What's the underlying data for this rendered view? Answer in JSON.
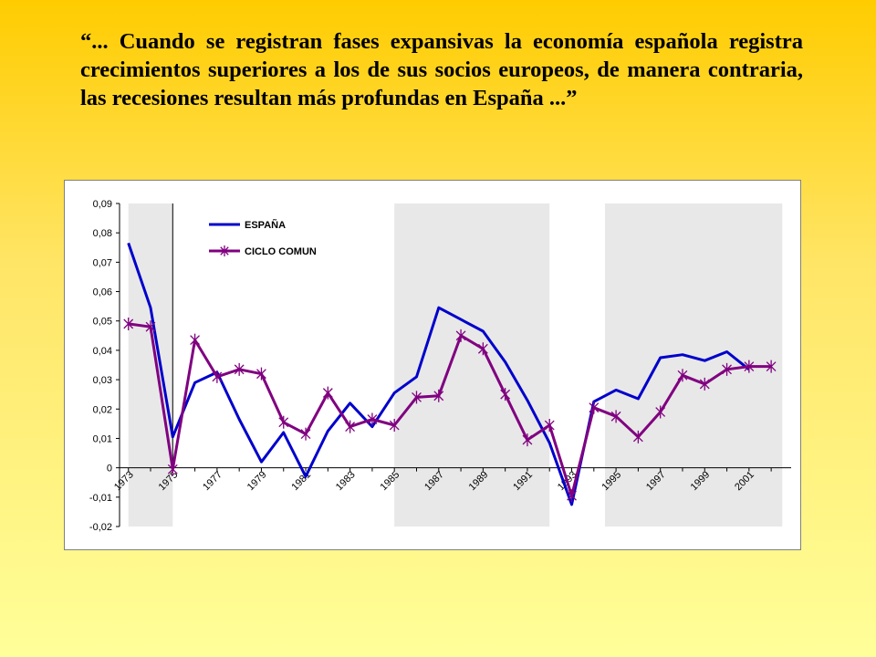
{
  "quote": {
    "text": "“... Cuando se registran fases expansivas la economía española registra crecimientos superiores a los de sus socios europeos, de manera contraria, las recesiones resultan más profundas en España ...”"
  },
  "colors": {
    "espana": "#0000cc",
    "ciclo": "#800080",
    "shade": "#e8e8e8",
    "background_top": "#ffcc00",
    "background_bottom": "#ffff99"
  },
  "chart_data": {
    "type": "line",
    "title": "",
    "xlabel": "",
    "ylabel": "",
    "x": [
      1973,
      1974,
      1975,
      1976,
      1977,
      1978,
      1979,
      1980,
      1981,
      1982,
      1983,
      1984,
      1985,
      1986,
      1987,
      1988,
      1989,
      1990,
      1991,
      1992,
      1993,
      1994,
      1995,
      1996,
      1997,
      1998,
      1999,
      2000,
      2001,
      2002
    ],
    "x_tick_labels": [
      "1973",
      "1975",
      "1977",
      "1979",
      "1981",
      "1983",
      "1985",
      "1987",
      "1989",
      "1991",
      "1993",
      "1995",
      "1997",
      "1999",
      "2001"
    ],
    "ylim": [
      -0.02,
      0.09
    ],
    "y_ticks": [
      "0,09",
      "0,08",
      "0,07",
      "0,06",
      "0,05",
      "0,04",
      "0,03",
      "0,02",
      "0,01",
      "0",
      "-0,01",
      "-0,02"
    ],
    "y_tick_values": [
      0.09,
      0.08,
      0.07,
      0.06,
      0.05,
      0.04,
      0.03,
      0.02,
      0.01,
      0,
      -0.01,
      -0.02
    ],
    "legend_position": "top-left",
    "grid": false,
    "shaded_periods": [
      [
        1973,
        1975
      ],
      [
        1985,
        1992
      ],
      [
        1994.5,
        2002.5
      ]
    ],
    "reference_line_x": 1975,
    "series": [
      {
        "name": "ESPAÑA",
        "color": "#0000cc",
        "marker": "none",
        "values": [
          0.0765,
          0.0545,
          0.0105,
          0.029,
          0.0325,
          0.0165,
          0.002,
          0.012,
          -0.003,
          0.0125,
          0.022,
          0.014,
          0.0255,
          0.031,
          0.0545,
          0.0505,
          0.0465,
          0.036,
          0.023,
          0.0085,
          -0.0125,
          0.0225,
          0.0265,
          0.0235,
          0.0375,
          0.0385,
          0.0365,
          0.0395,
          0.0335,
          null
        ]
      },
      {
        "name": "CICLO COMUN",
        "color": "#800080",
        "marker": "star",
        "values": [
          0.049,
          0.048,
          -0.0005,
          0.0435,
          0.031,
          0.0335,
          0.032,
          0.0155,
          0.0115,
          0.0255,
          0.014,
          0.0165,
          0.0145,
          0.024,
          0.0245,
          0.045,
          0.0405,
          0.025,
          0.0095,
          0.0145,
          -0.0095,
          0.0205,
          0.0175,
          0.0105,
          0.019,
          0.0315,
          0.0285,
          0.0335,
          0.0345,
          0.0345
        ]
      }
    ]
  }
}
